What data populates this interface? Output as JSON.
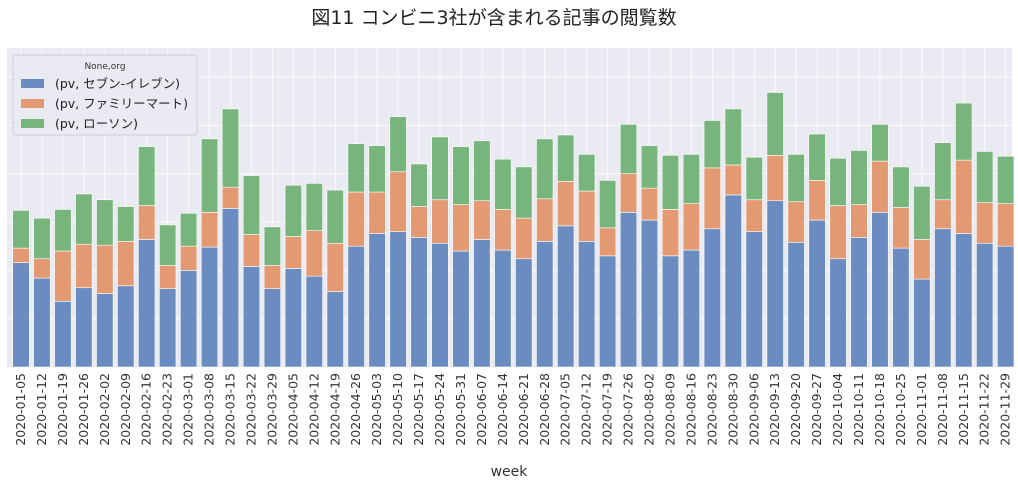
{
  "chart_data": {
    "type": "bar",
    "stacked": true,
    "title": "図11 コンビニ3社が含まれる記事の閲覧数",
    "xlabel": "week",
    "ylabel": "",
    "ylim": [
      0,
      330
    ],
    "grid": true,
    "legend": {
      "title": "None,org",
      "placement": "top-left"
    },
    "categories": [
      "2020-01-05",
      "2020-01-12",
      "2020-01-19",
      "2020-01-26",
      "2020-02-02",
      "2020-02-09",
      "2020-02-16",
      "2020-02-23",
      "2020-03-01",
      "2020-03-08",
      "2020-03-15",
      "2020-03-22",
      "2020-03-29",
      "2020-04-05",
      "2020-04-12",
      "2020-04-19",
      "2020-04-26",
      "2020-05-03",
      "2020-05-10",
      "2020-05-17",
      "2020-05-24",
      "2020-05-31",
      "2020-06-07",
      "2020-06-14",
      "2020-06-21",
      "2020-06-28",
      "2020-07-05",
      "2020-07-12",
      "2020-07-19",
      "2020-07-26",
      "2020-08-02",
      "2020-08-09",
      "2020-08-16",
      "2020-08-23",
      "2020-08-30",
      "2020-09-06",
      "2020-09-13",
      "2020-09-20",
      "2020-09-27",
      "2020-10-04",
      "2020-10-11",
      "2020-10-18",
      "2020-10-25",
      "2020-11-01",
      "2020-11-08",
      "2020-11-15",
      "2020-11-22",
      "2020-11-29"
    ],
    "series": [
      {
        "name": "(pv, セブン-イレブン)",
        "color": "#6a8cc0",
        "values": [
          108,
          92,
          68,
          82,
          76,
          84,
          132,
          81,
          100,
          124,
          164,
          104,
          81,
          102,
          94,
          78,
          125,
          138,
          140,
          134,
          128,
          120,
          132,
          121,
          112,
          130,
          146,
          130,
          115,
          160,
          152,
          115,
          121,
          143,
          178,
          140,
          172,
          129,
          152,
          112,
          134,
          160,
          123,
          91,
          143,
          138,
          128,
          125
        ]
      },
      {
        "name": "(pv, ファミリーマート)",
        "color": "#e39a72",
        "values": [
          15,
          20,
          52,
          45,
          50,
          46,
          35,
          24,
          25,
          36,
          22,
          33,
          24,
          33,
          47,
          50,
          56,
          43,
          62,
          32,
          45,
          48,
          40,
          42,
          42,
          44,
          46,
          52,
          29,
          40,
          33,
          48,
          48,
          63,
          31,
          33,
          47,
          42,
          41,
          55,
          34,
          53,
          42,
          41,
          30,
          76,
          42,
          44
        ]
      },
      {
        "name": "(pv, ローソン)",
        "color": "#77b57c",
        "values": [
          39,
          42,
          43,
          52,
          47,
          36,
          61,
          42,
          34,
          76,
          81,
          61,
          40,
          53,
          49,
          55,
          50,
          48,
          57,
          44,
          65,
          60,
          62,
          52,
          53,
          62,
          48,
          38,
          49,
          51,
          44,
          56,
          51,
          49,
          58,
          44,
          65,
          49,
          48,
          49,
          56,
          38,
          42,
          55,
          59,
          59,
          53,
          49
        ]
      }
    ]
  }
}
